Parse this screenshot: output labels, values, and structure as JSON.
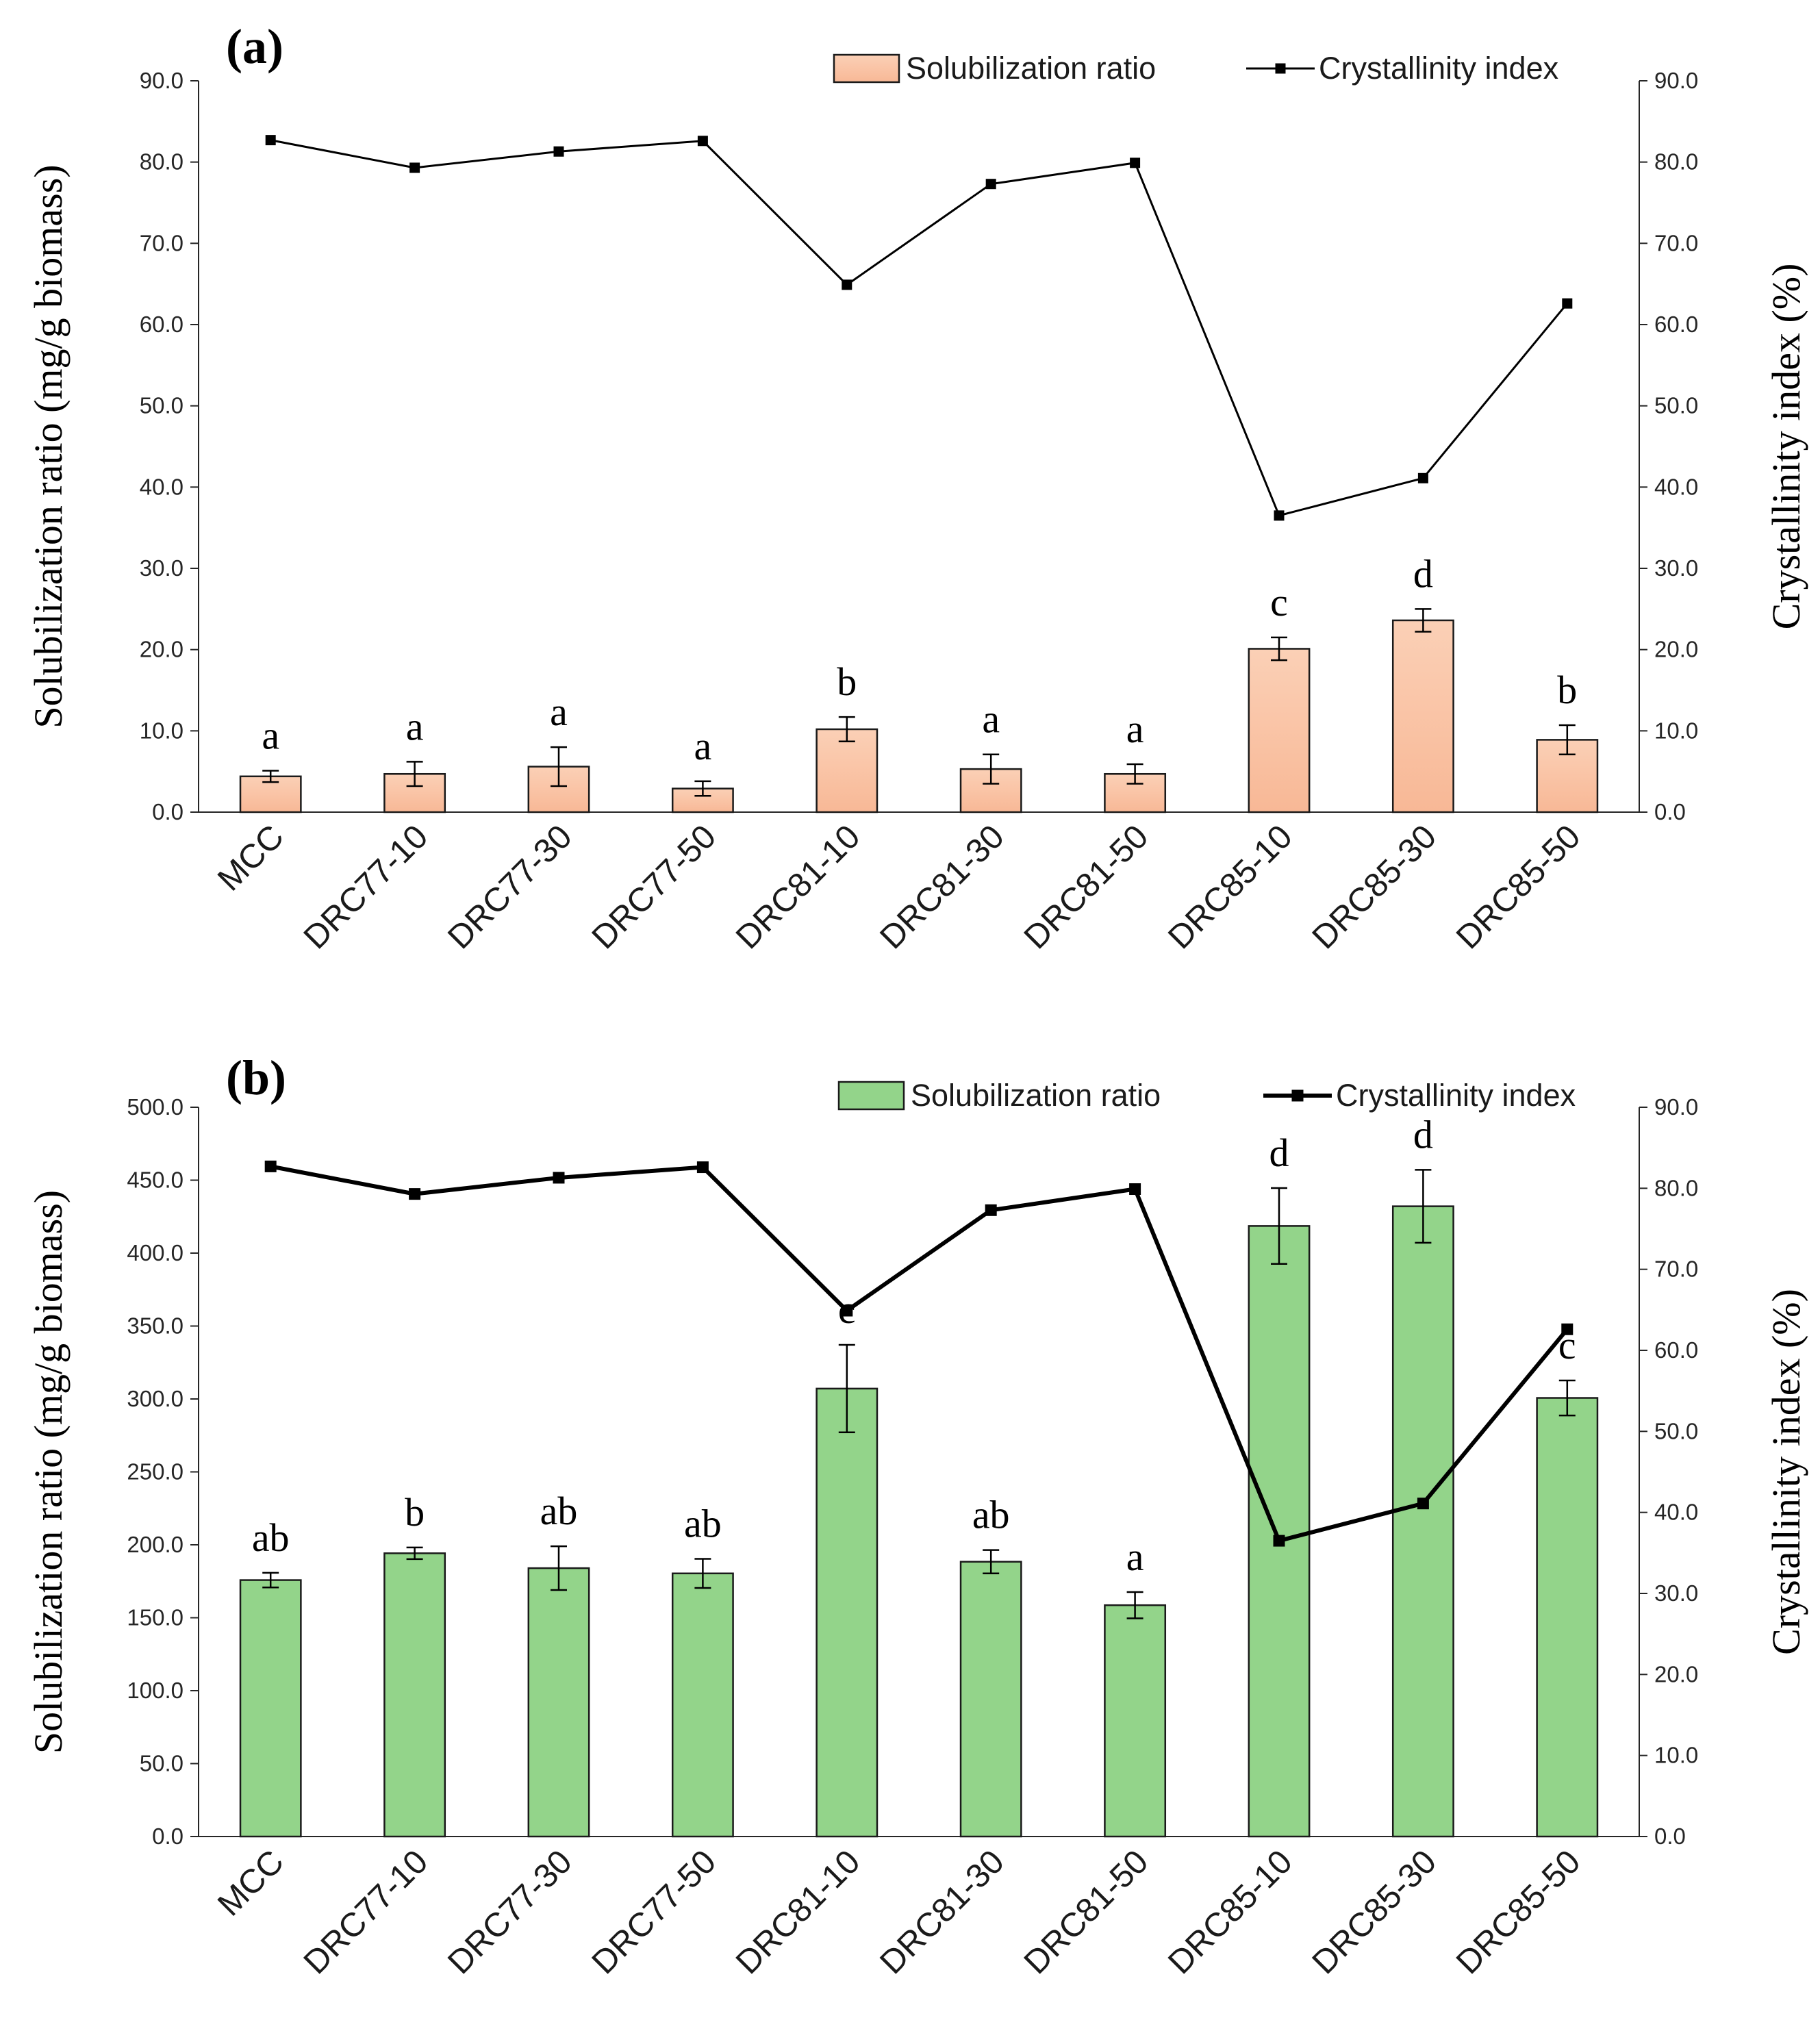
{
  "chart_data": [
    {
      "panel_label": "(a)",
      "type": "bar+line",
      "categories": [
        "MCC",
        "DRC77-10",
        "DRC77-30",
        "DRC77-50",
        "DRC81-10",
        "DRC81-30",
        "DRC81-50",
        "DRC85-10",
        "DRC85-30",
        "DRC85-50"
      ],
      "series": [
        {
          "name": "Solubilization ratio",
          "kind": "bar",
          "axis": "left",
          "values": [
            4.4,
            4.7,
            5.6,
            2.9,
            10.2,
            5.3,
            4.7,
            20.1,
            23.6,
            8.9
          ],
          "errors": [
            0.7,
            1.5,
            2.4,
            0.9,
            1.5,
            1.8,
            1.2,
            1.4,
            1.4,
            1.8
          ],
          "significance": [
            "a",
            "a",
            "a",
            "a",
            "b",
            "a",
            "a",
            "c",
            "d",
            "b"
          ]
        },
        {
          "name": "Crystallinity index",
          "kind": "line",
          "axis": "right",
          "values": [
            82.7,
            79.3,
            81.3,
            82.6,
            64.9,
            77.3,
            79.9,
            36.5,
            41.1,
            62.6
          ]
        }
      ],
      "ylabel": "Solubilization ratio (mg/g biomass)",
      "y2label": "Crystallinity index (%)",
      "ylim": [
        0,
        90
      ],
      "y2lim": [
        0,
        90
      ],
      "yticks": [
        "0.0",
        "10.0",
        "20.0",
        "30.0",
        "40.0",
        "50.0",
        "60.0",
        "70.0",
        "80.0",
        "90.0"
      ],
      "y2ticks": [
        "0.0",
        "10.0",
        "20.0",
        "30.0",
        "40.0",
        "50.0",
        "60.0",
        "70.0",
        "80.0",
        "90.0"
      ],
      "legend_position": "top-right",
      "colors": {
        "bar": "#f8b896",
        "bar_light": "#fbd0b6",
        "bar_stroke": "#1a1a1a",
        "line": "#000000"
      }
    },
    {
      "panel_label": "(b)",
      "type": "bar+line",
      "categories": [
        "MCC",
        "DRC77-10",
        "DRC77-30",
        "DRC77-50",
        "DRC81-10",
        "DRC81-30",
        "DRC81-50",
        "DRC85-10",
        "DRC85-30",
        "DRC85-50"
      ],
      "series": [
        {
          "name": "Solubilization ratio",
          "kind": "bar",
          "axis": "left",
          "values": [
            175.8,
            194.2,
            184.0,
            180.4,
            307.1,
            188.4,
            158.6,
            418.6,
            432.1,
            300.7
          ],
          "errors": [
            5,
            4,
            15,
            10,
            30,
            8,
            9,
            26,
            25,
            12
          ],
          "significance": [
            "ab",
            "b",
            "ab",
            "ab",
            "c",
            "ab",
            "a",
            "d",
            "d",
            "c"
          ]
        },
        {
          "name": "Crystallinity index",
          "kind": "line",
          "axis": "right",
          "values": [
            82.7,
            79.3,
            81.3,
            82.6,
            64.9,
            77.3,
            79.9,
            36.5,
            41.1,
            62.6
          ]
        }
      ],
      "ylabel": "Solubilization ratio (mg/g biomass)",
      "y2label": "Crystallinity index (%)",
      "ylim": [
        0,
        500
      ],
      "y2lim": [
        0,
        90
      ],
      "yticks": [
        "0.0",
        "50.0",
        "100.0",
        "150.0",
        "200.0",
        "250.0",
        "300.0",
        "350.0",
        "400.0",
        "450.0",
        "500.0"
      ],
      "y2ticks": [
        "0.0",
        "10.0",
        "20.0",
        "30.0",
        "40.0",
        "50.0",
        "60.0",
        "70.0",
        "80.0",
        "90.0"
      ],
      "legend_position": "top-right",
      "colors": {
        "bar": "#93d48a",
        "bar_light": "#93d48a",
        "bar_stroke": "#1a1a1a",
        "line": "#000000"
      }
    }
  ]
}
